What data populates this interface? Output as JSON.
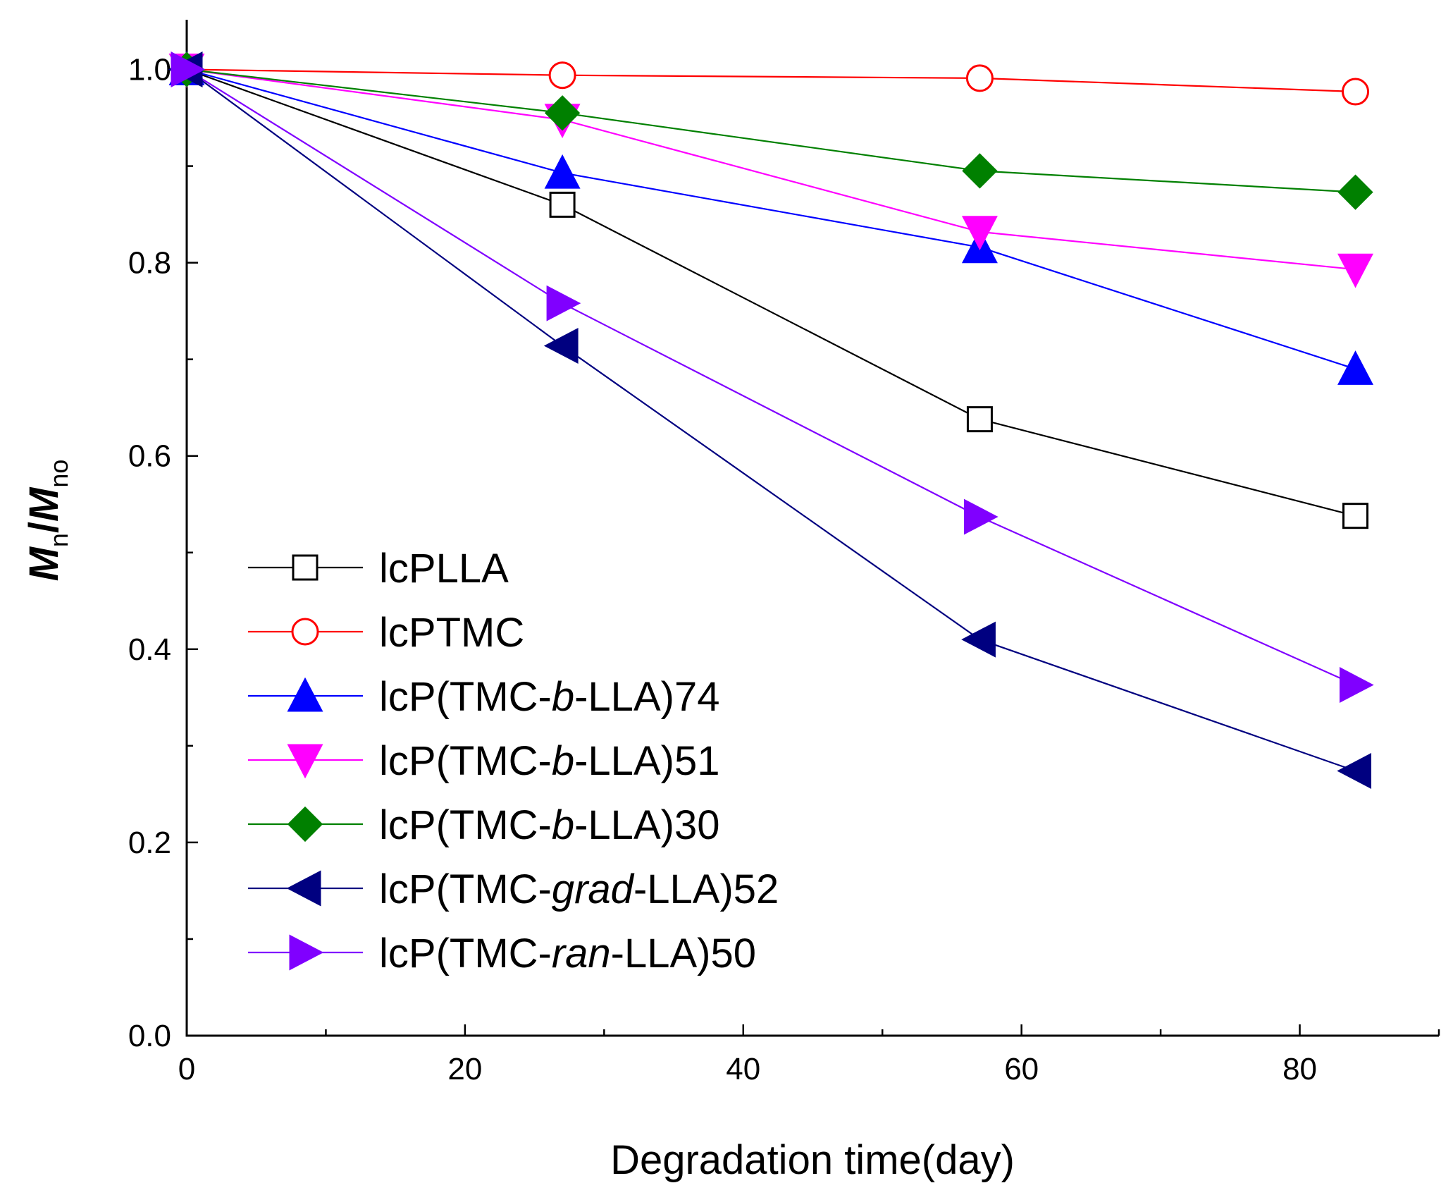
{
  "chart_data": {
    "type": "line",
    "xlabel": "Degradation time(day)",
    "ylabel": {
      "m1": "M",
      "sub1": "n",
      "slash": "/",
      "m2": "M",
      "sub2": "no"
    },
    "xlim": [
      0,
      90
    ],
    "ylim": [
      0.0,
      1.05
    ],
    "xticks": [
      0,
      20,
      40,
      60,
      80
    ],
    "xtick_labels": [
      "0",
      "20",
      "40",
      "60",
      "80"
    ],
    "yticks": [
      0.0,
      0.2,
      0.4,
      0.6,
      0.8,
      1.0
    ],
    "ytick_labels": [
      "0.0",
      "0.2",
      "0.4",
      "0.6",
      "0.8",
      "1.0"
    ],
    "grid": false,
    "legend_position": "bottom-left",
    "x": [
      0,
      27,
      57,
      84
    ],
    "series": [
      {
        "name": "lcPLLA",
        "label_parts": [
          "lcPLLA"
        ],
        "values": [
          1.0,
          0.86,
          0.638,
          0.538
        ],
        "color": "#000000",
        "marker": "square",
        "filled": false
      },
      {
        "name": "lcPTMC",
        "label_parts": [
          "lcPTMC"
        ],
        "values": [
          1.0,
          0.994,
          0.991,
          0.977
        ],
        "color": "#ff0000",
        "marker": "circle",
        "filled": false
      },
      {
        "name": "lcP(TMC-b-LLA)74",
        "label_parts": [
          "lcP(TMC-",
          "b",
          "-LLA)74"
        ],
        "values": [
          1.0,
          0.893,
          0.816,
          0.69
        ],
        "color": "#0000ff",
        "marker": "triangle-up",
        "filled": true
      },
      {
        "name": "lcP(TMC-b-LLA)51",
        "label_parts": [
          "lcP(TMC-",
          "b",
          "-LLA)51"
        ],
        "values": [
          1.0,
          0.948,
          0.832,
          0.793
        ],
        "color": "#ff00ff",
        "marker": "triangle-down",
        "filled": true
      },
      {
        "name": "lcP(TMC-b-LLA)30",
        "label_parts": [
          "lcP(TMC-",
          "b",
          "-LLA)30"
        ],
        "values": [
          1.0,
          0.955,
          0.895,
          0.873
        ],
        "color": "#008000",
        "marker": "diamond",
        "filled": true
      },
      {
        "name": "lcP(TMC-grad-LLA)52",
        "label_parts": [
          "lcP(TMC-",
          "grad",
          "-LLA)52"
        ],
        "values": [
          1.0,
          0.714,
          0.41,
          0.274
        ],
        "color": "#000080",
        "marker": "triangle-left",
        "filled": true
      },
      {
        "name": "lcP(TMC-ran-LLA)50",
        "label_parts": [
          "lcP(TMC-",
          "ran",
          "-LLA)50"
        ],
        "values": [
          1.0,
          0.758,
          0.537,
          0.363
        ],
        "color": "#8000ff",
        "marker": "triangle-right",
        "filled": true
      }
    ]
  }
}
